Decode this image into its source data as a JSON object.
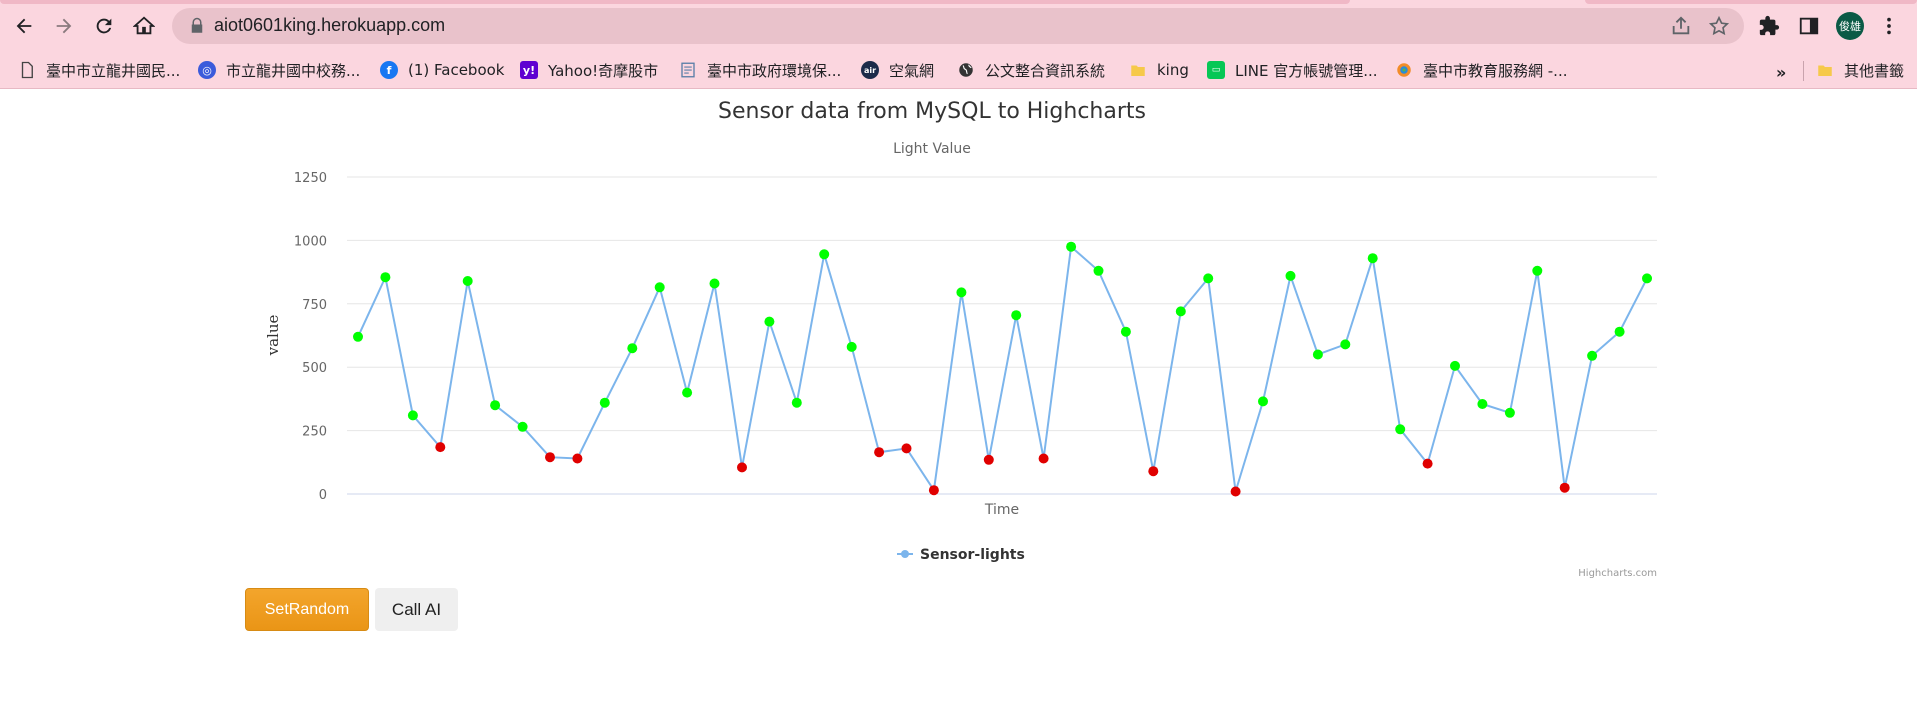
{
  "browser": {
    "url": "aiot0601king.herokuapp.com",
    "avatar_text": "俊雄",
    "bookmarks": [
      {
        "label": "臺中市立龍井國民...",
        "icon": "page-icon"
      },
      {
        "label": "市立龍井國中校務...",
        "icon": "school-icon"
      },
      {
        "label": "(1) Facebook",
        "icon": "facebook-icon"
      },
      {
        "label": "Yahoo!奇摩股市",
        "icon": "yahoo-icon"
      },
      {
        "label": "臺中市政府環境保...",
        "icon": "document-icon"
      },
      {
        "label": "空氣網",
        "icon": "air-icon"
      },
      {
        "label": "公文整合資訊系統",
        "icon": "globe-icon"
      },
      {
        "label": "king",
        "icon": "folder-icon"
      },
      {
        "label": "LINE 官方帳號管理...",
        "icon": "line-icon"
      },
      {
        "label": "臺中市教育服務網 -...",
        "icon": "edu-icon"
      }
    ],
    "more_label": "»",
    "other_bookmarks": "其他書籤"
  },
  "chart_data": {
    "type": "line",
    "title": "Sensor data from MySQL to Highcharts",
    "subtitle": "Light Value",
    "xlabel": "Time",
    "ylabel": "value",
    "ylim": [
      0,
      1250
    ],
    "yticks": [
      0,
      250,
      500,
      750,
      1000,
      1250
    ],
    "grid": true,
    "legend_position": "bottom-center",
    "credits": "Highcharts.com",
    "series": [
      {
        "name": "Sensor-lights",
        "color": "#7cb5ec",
        "values": [
          620,
          855,
          310,
          185,
          840,
          350,
          265,
          145,
          140,
          360,
          575,
          815,
          400,
          830,
          105,
          680,
          360,
          945,
          580,
          165,
          180,
          15,
          795,
          135,
          705,
          140,
          975,
          880,
          640,
          90,
          720,
          850,
          10,
          365,
          860,
          550,
          590,
          930,
          255,
          120,
          505,
          355,
          320,
          880,
          25,
          545,
          640,
          850
        ]
      }
    ],
    "threshold": 200,
    "high_color": "#00ff00",
    "low_color": "#e00000"
  },
  "buttons": {
    "set_random": "SetRandom",
    "call_ai": "Call AI"
  }
}
